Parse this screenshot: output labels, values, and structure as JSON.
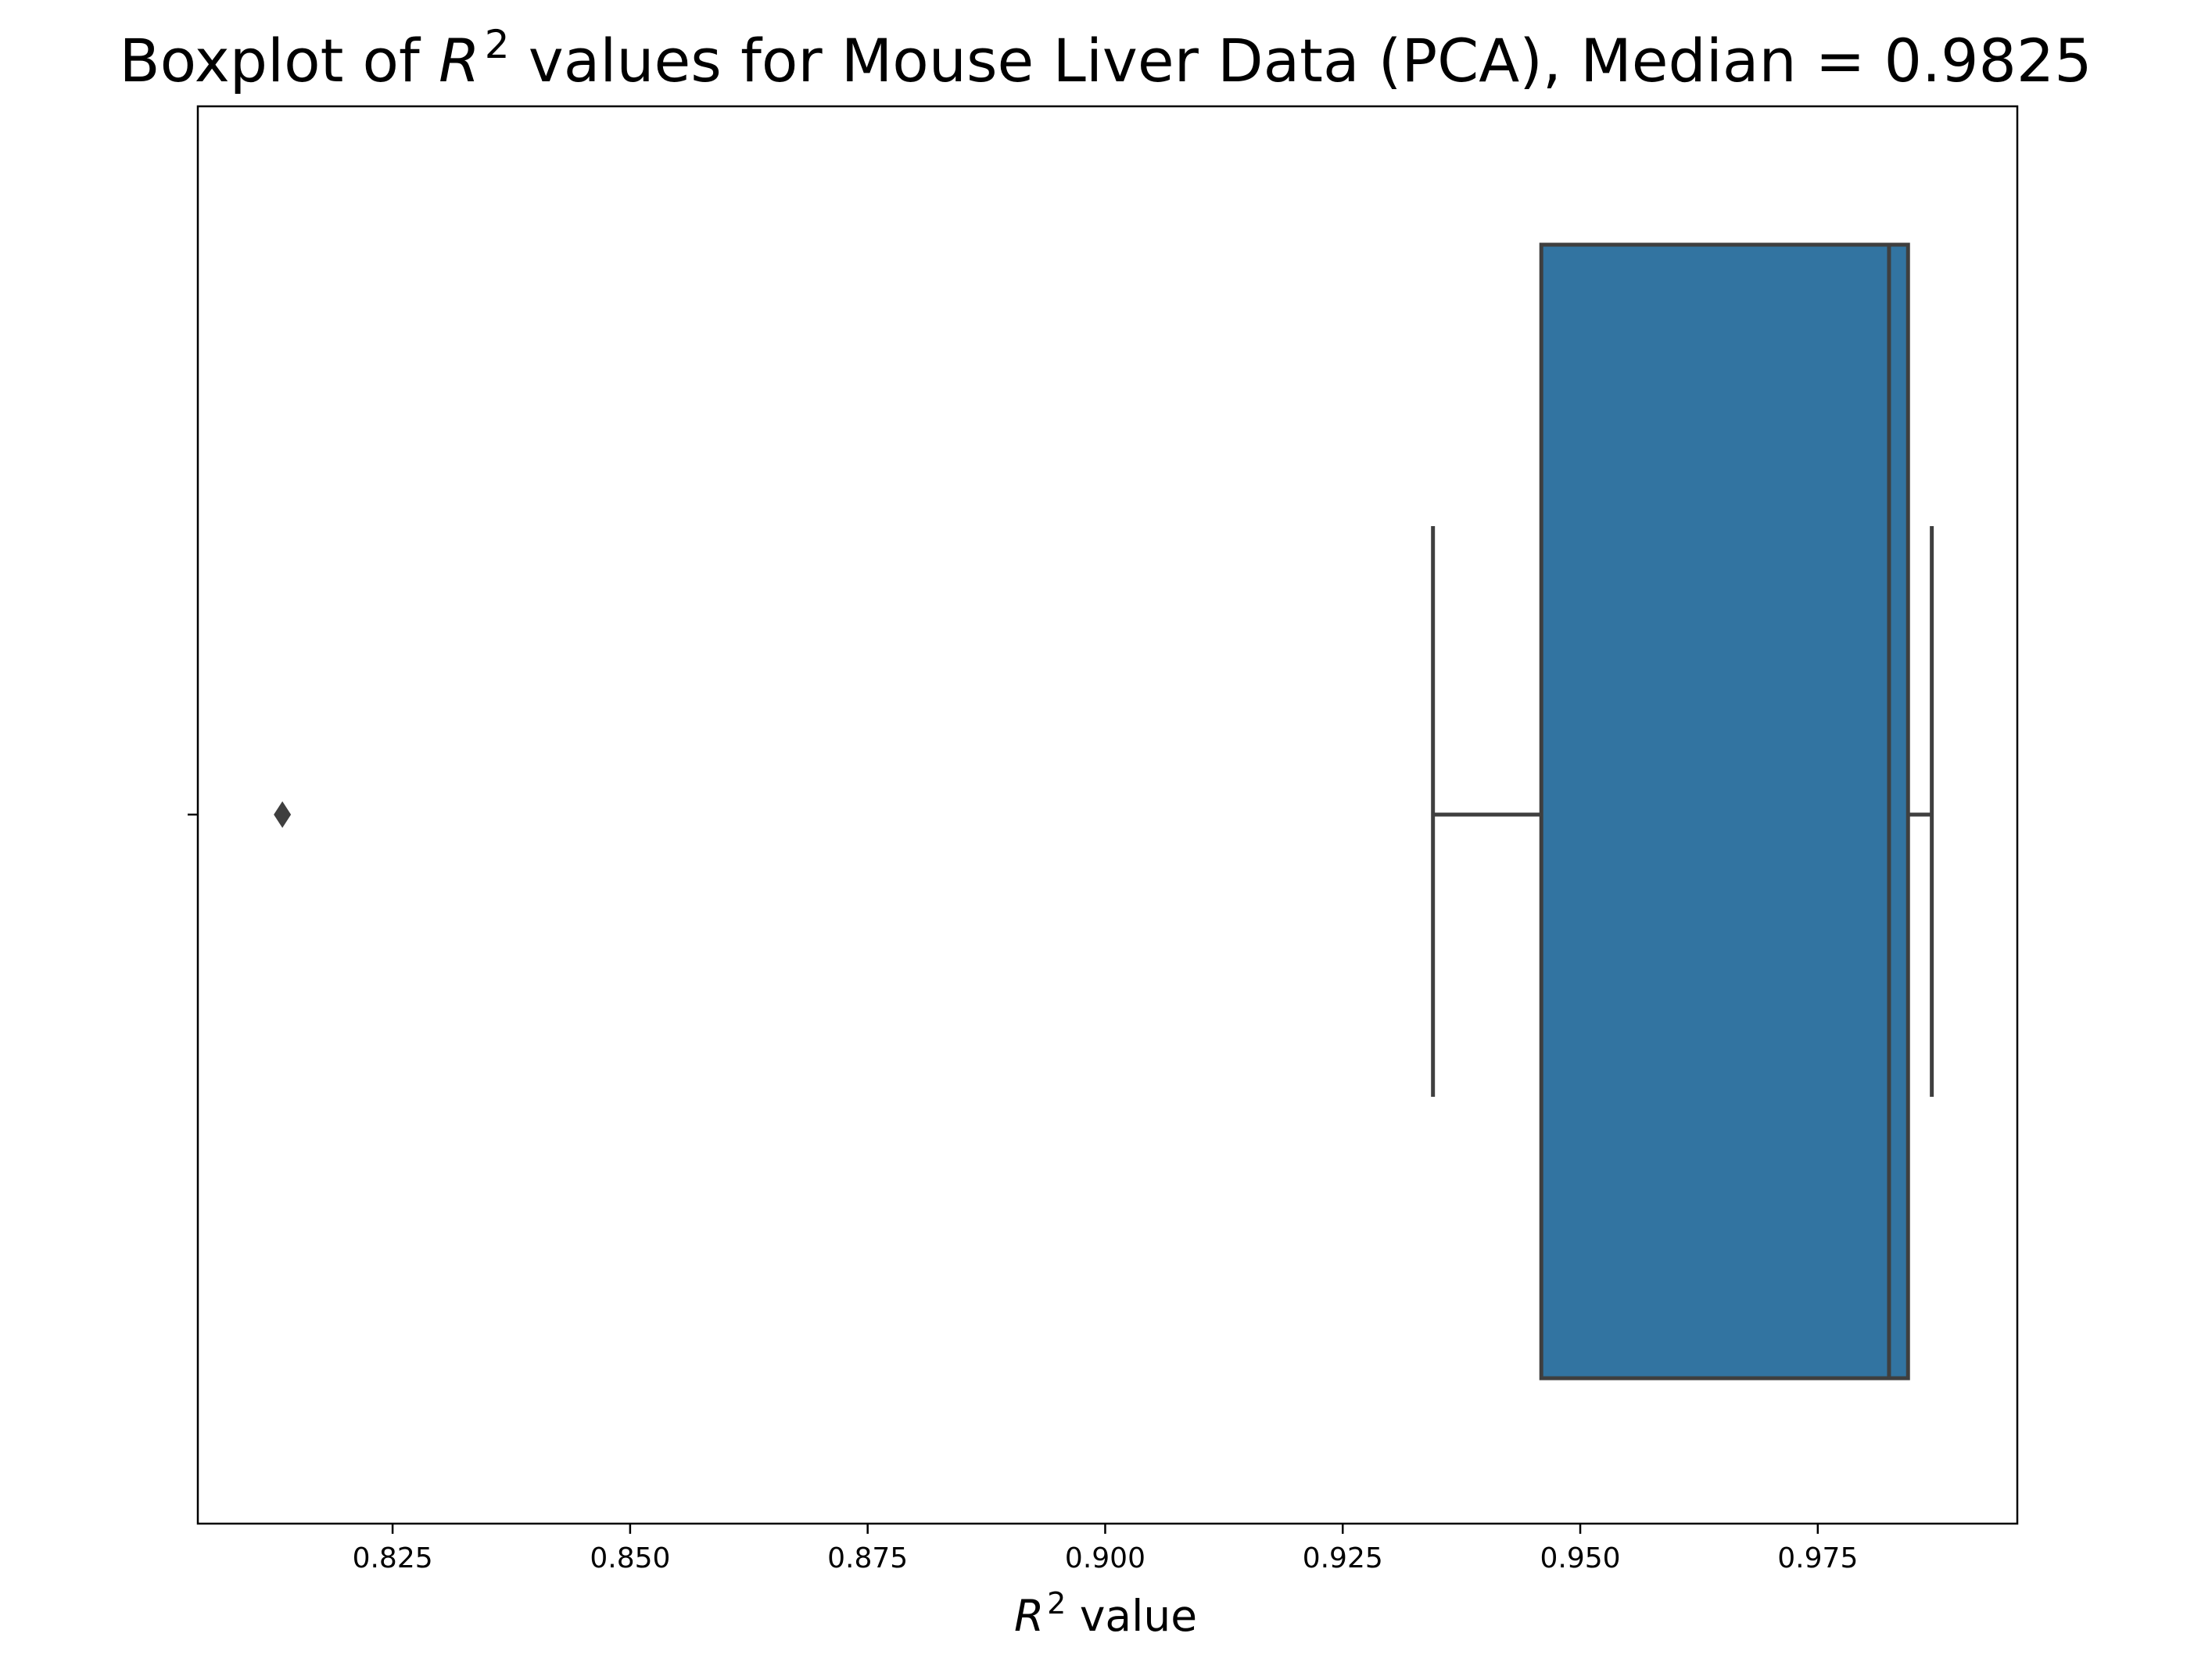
{
  "chart_data": {
    "type": "boxplot",
    "title_prefix": "Boxplot of ",
    "title_sym": "R",
    "title_sup": "2",
    "title_suffix": " values for Mouse Liver Data (PCA), Median = 0.9825",
    "xlabel_sym": "R",
    "xlabel_sup": "2",
    "xlabel_suffix": " value",
    "xlim": [
      0.8045,
      0.996
    ],
    "xticks": [
      0.825,
      0.85,
      0.875,
      0.9,
      0.925,
      0.95,
      0.975
    ],
    "xtick_labels": [
      "0.825",
      "0.850",
      "0.875",
      "0.900",
      "0.925",
      "0.950",
      "0.975"
    ],
    "grid": false,
    "box": {
      "whisker_low": 0.9345,
      "q1": 0.9459,
      "median": 0.9825,
      "q3": 0.9845,
      "whisker_high": 0.987,
      "outliers": [
        0.8134
      ]
    },
    "colors": {
      "box_fill": "#3274a1",
      "lines": "#3f3f3f",
      "axes": "#000000"
    }
  }
}
